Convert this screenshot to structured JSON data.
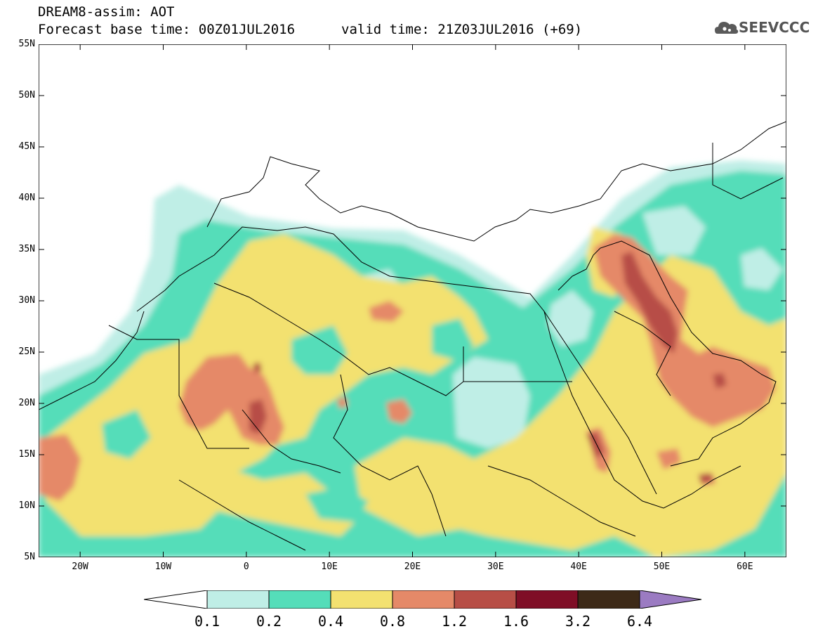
{
  "header": {
    "line1": "DREAM8-assim: AOT",
    "line2_left": "Forecast base time: 00Z01JUL2016",
    "line2_right": "valid time: 21Z03JUL2016 (+69)",
    "logo": "SEEVCCC"
  },
  "map": {
    "lon_range": [
      -25,
      65
    ],
    "lat_range": [
      5,
      55
    ],
    "lat_ticks": [
      "55N",
      "50N",
      "45N",
      "40N",
      "35N",
      "30N",
      "25N",
      "20N",
      "15N",
      "10N",
      "5N"
    ],
    "lon_ticks": [
      "20W",
      "10W",
      "0",
      "10E",
      "20E",
      "30E",
      "40E",
      "50E",
      "60E"
    ]
  },
  "colorbar": {
    "labels": [
      "0.1",
      "0.2",
      "0.4",
      "0.8",
      "1.2",
      "1.6",
      "3.2",
      "6.4"
    ],
    "colors": [
      "#bfeee6",
      "#55ddb9",
      "#f3e170",
      "#e58968",
      "#b74e46",
      "#7f0e26",
      "#3d2a18",
      "#9b7bc2"
    ]
  }
}
